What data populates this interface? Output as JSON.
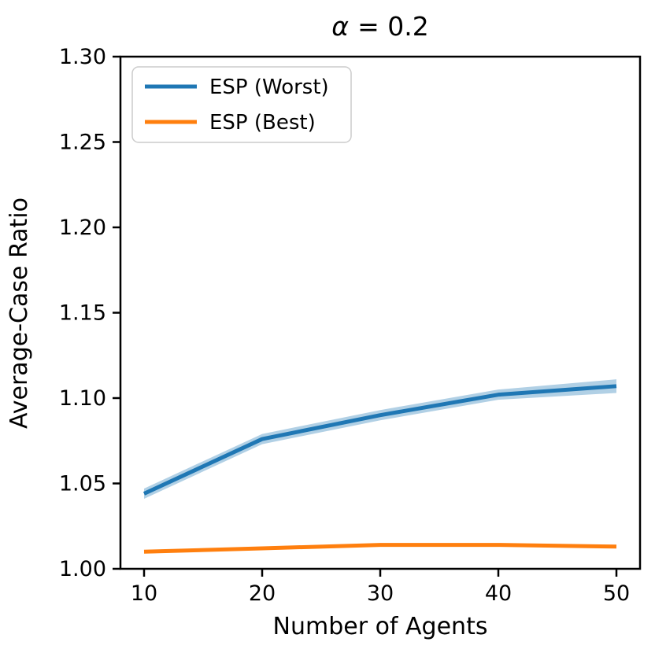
{
  "chart_data": {
    "type": "line",
    "title": "α = 0.2",
    "title_parts": {
      "italic": "α",
      "normal": "= 0.2"
    },
    "xlabel": "Number of Agents",
    "ylabel": "Average-Case Ratio",
    "x": [
      10,
      20,
      30,
      40,
      50
    ],
    "series": [
      {
        "name": "ESP (Worst)",
        "color": "#1f77b4",
        "band_color": "rgba(31,119,180,0.35)",
        "values": [
          1.044,
          1.076,
          1.09,
          1.102,
          1.107
        ],
        "band": [
          0.003,
          0.003,
          0.003,
          0.003,
          0.004
        ]
      },
      {
        "name": "ESP (Best)",
        "color": "#ff7f0e",
        "band_color": "rgba(255,127,14,0.35)",
        "values": [
          1.01,
          1.012,
          1.014,
          1.014,
          1.013
        ],
        "band": [
          0.001,
          0.001,
          0.001,
          0.001,
          0.001
        ]
      }
    ],
    "xlim": [
      8,
      52
    ],
    "ylim": [
      1.0,
      1.3
    ],
    "xticks": [
      "10",
      "20",
      "30",
      "40",
      "50"
    ],
    "xtick_values": [
      10,
      20,
      30,
      40,
      50
    ],
    "yticks": [
      "1.00",
      "1.05",
      "1.10",
      "1.15",
      "1.20",
      "1.25",
      "1.30"
    ],
    "ytick_values": [
      1.0,
      1.05,
      1.1,
      1.15,
      1.2,
      1.25,
      1.3
    ],
    "grid": false,
    "legend_position": "upper left",
    "axis_color": "#000000",
    "background_color": "#ffffff",
    "legend_border_color": "#cccccc"
  }
}
